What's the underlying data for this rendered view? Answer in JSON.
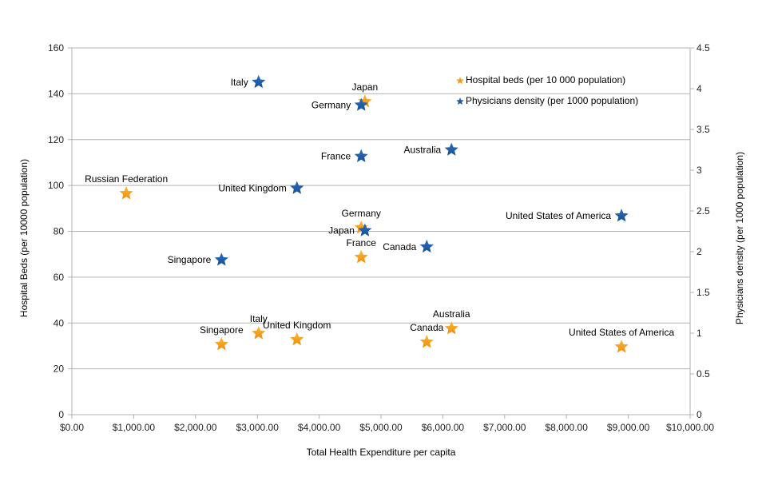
{
  "chart_data": {
    "type": "scatter",
    "title": "",
    "xlabel": "Total Health Expenditure per capita",
    "ylabel": "Hospital Beds (per 10000 population)",
    "y2label": "Physicians density (per 1000 population)",
    "xlim": [
      0,
      10000
    ],
    "ylim": [
      0,
      160
    ],
    "y2lim": [
      0,
      4.5
    ],
    "x_ticks": [
      "$0.00",
      "$1,000.00",
      "$2,000.00",
      "$3,000.00",
      "$4,000.00",
      "$5,000.00",
      "$6,000.00",
      "$7,000.00",
      "$8,000.00",
      "$9,000.00",
      "$10,000.00"
    ],
    "x_tick_values": [
      0,
      1000,
      2000,
      3000,
      4000,
      5000,
      6000,
      7000,
      8000,
      9000,
      10000
    ],
    "y_ticks": [
      "0",
      "20",
      "40",
      "60",
      "80",
      "100",
      "120",
      "140",
      "160"
    ],
    "y_tick_values": [
      0,
      20,
      40,
      60,
      80,
      100,
      120,
      140,
      160
    ],
    "y2_ticks": [
      "0",
      "0.5",
      "1",
      "1.5",
      "2",
      "2.5",
      "3",
      "3.5",
      "4",
      "4.5"
    ],
    "y2_tick_values": [
      0,
      0.5,
      1,
      1.5,
      2,
      2.5,
      3,
      3.5,
      4,
      4.5
    ],
    "grid": true,
    "legend_position": "top-right",
    "series": [
      {
        "name": "Hospital beds (per 10 000 population)",
        "axis": "left",
        "color": "#f5a623",
        "points": [
          {
            "label": "Russian Federation",
            "x": 880,
            "y": 96.5,
            "label_pos": "above"
          },
          {
            "label": "Singapore",
            "x": 2420,
            "y": 30.7,
            "label_pos": "above"
          },
          {
            "label": "Italy",
            "x": 3020,
            "y": 35.5,
            "label_pos": "above"
          },
          {
            "label": "United Kingdom",
            "x": 3640,
            "y": 32.8,
            "label_pos": "above"
          },
          {
            "label": "Japan",
            "x": 4740,
            "y": 136.6,
            "label_pos": "above"
          },
          {
            "label": "Germany",
            "x": 4680,
            "y": 81.6,
            "label_pos": "above"
          },
          {
            "label": "France",
            "x": 4680,
            "y": 68.7,
            "label_pos": "above"
          },
          {
            "label": "Canada",
            "x": 5740,
            "y": 31.7,
            "label_pos": "above"
          },
          {
            "label": "Australia",
            "x": 6140,
            "y": 37.6,
            "label_pos": "above"
          },
          {
            "label": "United States of America",
            "x": 8890,
            "y": 29.6,
            "label_pos": "above"
          }
        ]
      },
      {
        "name": "Physicians density (per 1000 population)",
        "axis": "right",
        "color": "#1f5fa8",
        "points": [
          {
            "label": "Italy",
            "x": 3020,
            "y": 4.08,
            "label_pos": "left"
          },
          {
            "label": "Germany",
            "x": 4680,
            "y": 3.8,
            "label_pos": "left"
          },
          {
            "label": "France",
            "x": 4680,
            "y": 3.17,
            "label_pos": "left"
          },
          {
            "label": "Australia",
            "x": 6140,
            "y": 3.25,
            "label_pos": "left"
          },
          {
            "label": "United Kingdom",
            "x": 3640,
            "y": 2.78,
            "label_pos": "left"
          },
          {
            "label": "United States of America",
            "x": 8890,
            "y": 2.44,
            "label_pos": "left"
          },
          {
            "label": "Japan",
            "x": 4740,
            "y": 2.26,
            "label_pos": "left"
          },
          {
            "label": "Canada",
            "x": 5740,
            "y": 2.06,
            "label_pos": "left"
          },
          {
            "label": "Singapore",
            "x": 2420,
            "y": 1.9,
            "label_pos": "left"
          }
        ]
      }
    ]
  }
}
